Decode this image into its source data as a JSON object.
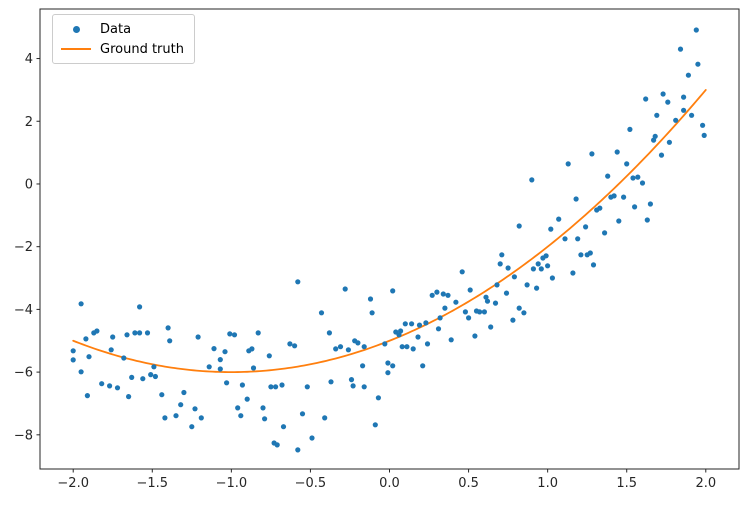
{
  "figure": {
    "background": "#ffffff"
  },
  "axes": {
    "frame_color": "#262626",
    "tick_color": "#262626",
    "tick_label_color": "#262626",
    "x_ticks": [
      -2.0,
      -1.5,
      -1.0,
      -0.5,
      0.0,
      0.5,
      1.0,
      1.5,
      2.0
    ],
    "x_tick_labels": [
      "−2.0",
      "−1.5",
      "−1.0",
      "−0.5",
      "0.0",
      "0.5",
      "1.0",
      "1.5",
      "2.0"
    ],
    "y_ticks": [
      -8,
      -6,
      -4,
      -2,
      0,
      2,
      4
    ],
    "y_tick_labels": [
      "−8",
      "−6",
      "−4",
      "−2",
      "0",
      "2",
      "4"
    ]
  },
  "chart_data": {
    "type": "scatter",
    "title": "",
    "xlabel": "",
    "ylabel": "",
    "xlim": [
      -2.21,
      2.21
    ],
    "ylim": [
      -9.09,
      5.58
    ],
    "grid": false,
    "legend_position": "upper left",
    "series": [
      {
        "name": "Data",
        "type": "scatter",
        "color": "#1f77b4",
        "marker": "circle",
        "points": [
          [
            -2.0,
            -5.32
          ],
          [
            -2.0,
            -5.61
          ],
          [
            -1.95,
            -3.82
          ],
          [
            -1.95,
            -5.99
          ],
          [
            -1.92,
            -4.94
          ],
          [
            -1.91,
            -6.75
          ],
          [
            -1.9,
            -5.51
          ],
          [
            -1.87,
            -4.75
          ],
          [
            -1.85,
            -4.69
          ],
          [
            -1.82,
            -6.37
          ],
          [
            -1.77,
            -6.44
          ],
          [
            -1.76,
            -5.29
          ],
          [
            -1.75,
            -4.88
          ],
          [
            -1.72,
            -6.5
          ],
          [
            -1.68,
            -5.55
          ],
          [
            -1.66,
            -4.81
          ],
          [
            -1.65,
            -6.78
          ],
          [
            -1.63,
            -6.17
          ],
          [
            -1.61,
            -4.75
          ],
          [
            -1.58,
            -3.92
          ],
          [
            -1.58,
            -4.75
          ],
          [
            -1.56,
            -6.21
          ],
          [
            -1.53,
            -4.75
          ],
          [
            -1.51,
            -6.08
          ],
          [
            -1.49,
            -5.83
          ],
          [
            -1.48,
            -6.14
          ],
          [
            -1.44,
            -6.72
          ],
          [
            -1.42,
            -7.46
          ],
          [
            -1.4,
            -4.59
          ],
          [
            -1.39,
            -5.0
          ],
          [
            -1.35,
            -7.39
          ],
          [
            -1.32,
            -7.04
          ],
          [
            -1.3,
            -6.65
          ],
          [
            -1.25,
            -7.74
          ],
          [
            -1.23,
            -7.17
          ],
          [
            -1.21,
            -4.88
          ],
          [
            -1.19,
            -7.46
          ],
          [
            -1.14,
            -5.83
          ],
          [
            -1.11,
            -5.25
          ],
          [
            -1.07,
            -5.6
          ],
          [
            -1.07,
            -5.9
          ],
          [
            -1.04,
            -5.35
          ],
          [
            -1.03,
            -6.34
          ],
          [
            -1.01,
            -4.78
          ],
          [
            -0.98,
            -4.81
          ],
          [
            -0.96,
            -7.14
          ],
          [
            -0.94,
            -7.39
          ],
          [
            -0.93,
            -6.41
          ],
          [
            -0.9,
            -6.86
          ],
          [
            -0.89,
            -5.32
          ],
          [
            -0.87,
            -5.26
          ],
          [
            -0.86,
            -5.87
          ],
          [
            -0.83,
            -4.75
          ],
          [
            -0.8,
            -7.14
          ],
          [
            -0.79,
            -7.49
          ],
          [
            -0.76,
            -5.48
          ],
          [
            -0.75,
            -6.47
          ],
          [
            -0.73,
            -8.26
          ],
          [
            -0.72,
            -6.47
          ],
          [
            -0.71,
            -8.32
          ],
          [
            -0.68,
            -6.41
          ],
          [
            -0.67,
            -7.74
          ],
          [
            -0.63,
            -5.1
          ],
          [
            -0.6,
            -5.16
          ],
          [
            -0.58,
            -3.12
          ],
          [
            -0.58,
            -8.48
          ],
          [
            -0.55,
            -7.33
          ],
          [
            -0.52,
            -6.47
          ],
          [
            -0.49,
            -8.1
          ],
          [
            -0.43,
            -4.11
          ],
          [
            -0.41,
            -7.46
          ],
          [
            -0.38,
            -4.75
          ],
          [
            -0.37,
            -6.31
          ],
          [
            -0.34,
            -5.26
          ],
          [
            -0.31,
            -5.19
          ],
          [
            -0.28,
            -3.35
          ],
          [
            -0.26,
            -5.29
          ],
          [
            -0.24,
            -6.24
          ],
          [
            -0.23,
            -6.44
          ],
          [
            -0.22,
            -5.0
          ],
          [
            -0.2,
            -5.07
          ],
          [
            -0.17,
            -5.8
          ],
          [
            -0.16,
            -5.19
          ],
          [
            -0.16,
            -6.47
          ],
          [
            -0.12,
            -3.67
          ],
          [
            -0.11,
            -4.11
          ],
          [
            -0.09,
            -7.68
          ],
          [
            -0.07,
            -6.82
          ],
          [
            -0.03,
            -5.1
          ],
          [
            -0.01,
            -5.71
          ],
          [
            -0.01,
            -6.02
          ],
          [
            0.02,
            -5.8
          ],
          [
            0.02,
            -3.41
          ],
          [
            0.04,
            -4.72
          ],
          [
            0.06,
            -4.81
          ],
          [
            0.07,
            -4.69
          ],
          [
            0.08,
            -5.19
          ],
          [
            0.1,
            -4.46
          ],
          [
            0.11,
            -5.19
          ],
          [
            0.14,
            -4.46
          ],
          [
            0.15,
            -5.26
          ],
          [
            0.18,
            -4.88
          ],
          [
            0.19,
            -4.5
          ],
          [
            0.21,
            -5.8
          ],
          [
            0.23,
            -4.43
          ],
          [
            0.24,
            -5.1
          ],
          [
            0.27,
            -3.55
          ],
          [
            0.3,
            -3.45
          ],
          [
            0.31,
            -4.62
          ],
          [
            0.32,
            -4.27
          ],
          [
            0.34,
            -3.51
          ],
          [
            0.35,
            -3.96
          ],
          [
            0.37,
            -3.55
          ],
          [
            0.39,
            -4.97
          ],
          [
            0.42,
            -3.77
          ],
          [
            0.46,
            -2.8
          ],
          [
            0.48,
            -4.08
          ],
          [
            0.5,
            -4.27
          ],
          [
            0.51,
            -3.38
          ],
          [
            0.54,
            -4.85
          ],
          [
            0.55,
            -4.05
          ],
          [
            0.57,
            -4.08
          ],
          [
            0.6,
            -4.08
          ],
          [
            0.61,
            -3.61
          ],
          [
            0.62,
            -3.74
          ],
          [
            0.64,
            -4.56
          ],
          [
            0.67,
            -3.8
          ],
          [
            0.68,
            -3.22
          ],
          [
            0.7,
            -2.55
          ],
          [
            0.71,
            -2.26
          ],
          [
            0.74,
            -3.48
          ],
          [
            0.75,
            -2.68
          ],
          [
            0.78,
            -4.34
          ],
          [
            0.79,
            -2.96
          ],
          [
            0.82,
            -3.96
          ],
          [
            0.85,
            -4.11
          ],
          [
            0.87,
            -3.22
          ],
          [
            0.91,
            -2.71
          ],
          [
            0.93,
            -3.32
          ],
          [
            0.94,
            -2.55
          ],
          [
            0.96,
            -2.71
          ],
          [
            0.97,
            -2.36
          ],
          [
            0.99,
            -2.29
          ],
          [
            1.0,
            -2.61
          ],
          [
            1.03,
            -3.0
          ],
          [
            0.82,
            -1.34
          ],
          [
            0.9,
            0.13
          ],
          [
            1.02,
            -1.44
          ],
          [
            1.07,
            -1.12
          ],
          [
            1.11,
            -1.75
          ],
          [
            1.13,
            0.64
          ],
          [
            1.16,
            -2.84
          ],
          [
            1.18,
            -0.48
          ],
          [
            1.19,
            -1.75
          ],
          [
            1.21,
            -2.26
          ],
          [
            1.24,
            -1.37
          ],
          [
            1.25,
            -2.26
          ],
          [
            1.27,
            -2.2
          ],
          [
            1.28,
            0.96
          ],
          [
            1.29,
            -2.58
          ],
          [
            1.31,
            -0.83
          ],
          [
            1.33,
            -0.77
          ],
          [
            1.36,
            -1.56
          ],
          [
            1.38,
            0.25
          ],
          [
            1.4,
            -0.42
          ],
          [
            1.42,
            -0.38
          ],
          [
            1.44,
            1.02
          ],
          [
            1.45,
            -1.18
          ],
          [
            1.48,
            -0.42
          ],
          [
            1.5,
            0.64
          ],
          [
            1.52,
            1.74
          ],
          [
            1.54,
            0.19
          ],
          [
            1.55,
            -0.73
          ],
          [
            1.57,
            0.22
          ],
          [
            1.6,
            0.03
          ],
          [
            1.62,
            2.71
          ],
          [
            1.63,
            -1.15
          ],
          [
            1.65,
            -0.64
          ],
          [
            1.67,
            1.4
          ],
          [
            1.68,
            1.52
          ],
          [
            1.69,
            2.19
          ],
          [
            1.72,
            0.92
          ],
          [
            1.73,
            2.87
          ],
          [
            1.76,
            2.61
          ],
          [
            1.77,
            1.33
          ],
          [
            1.81,
            2.03
          ],
          [
            1.84,
            4.3
          ],
          [
            1.86,
            2.35
          ],
          [
            1.86,
            2.77
          ],
          [
            1.89,
            3.47
          ],
          [
            1.91,
            2.19
          ],
          [
            1.94,
            4.91
          ],
          [
            1.95,
            3.82
          ],
          [
            1.98,
            1.87
          ],
          [
            1.99,
            1.55
          ]
        ]
      },
      {
        "name": "Ground truth",
        "type": "line",
        "color": "#ff7f0e",
        "formula": "y = x^2 + 2x − 5",
        "coefficients": {
          "a": 1,
          "b": 2,
          "c": -5
        },
        "x_range": [
          -2,
          2
        ],
        "curve_points": [
          [
            -2,
            -5
          ],
          [
            -1.75,
            -5.44
          ],
          [
            -1.5,
            -5.75
          ],
          [
            -1.25,
            -5.94
          ],
          [
            -1,
            -6
          ],
          [
            -0.75,
            -5.94
          ],
          [
            -0.5,
            -5.75
          ],
          [
            -0.25,
            -5.44
          ],
          [
            0,
            -5
          ],
          [
            0.25,
            -4.44
          ],
          [
            0.5,
            -3.75
          ],
          [
            0.75,
            -2.94
          ],
          [
            1,
            -2
          ],
          [
            1.25,
            -0.94
          ],
          [
            1.5,
            0.25
          ],
          [
            1.75,
            1.56
          ],
          [
            2,
            3
          ]
        ]
      }
    ]
  },
  "legend": {
    "entries": [
      {
        "label": "Data",
        "marker": "dot",
        "color": "#1f77b4"
      },
      {
        "label": "Ground truth",
        "marker": "line",
        "color": "#ff7f0e"
      }
    ]
  }
}
